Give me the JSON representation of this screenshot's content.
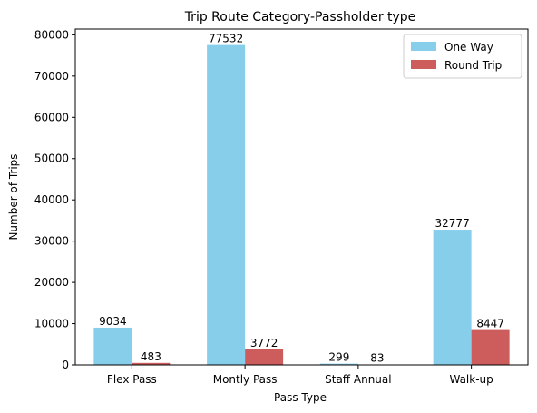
{
  "chart_data": {
    "type": "bar",
    "title": "Trip Route Category-Passholder type",
    "xlabel": "Pass Type",
    "ylabel": "Number of Trips",
    "categories": [
      "Flex Pass",
      "Montly Pass",
      "Staff Annual",
      "Walk-up"
    ],
    "series": [
      {
        "name": "One Way",
        "values": [
          9034,
          77532,
          299,
          32777
        ],
        "color": "#87ceeb"
      },
      {
        "name": "Round Trip",
        "values": [
          483,
          3772,
          83,
          8447
        ],
        "color": "#cd5c5c"
      }
    ],
    "ylim": [
      0,
      81408
    ],
    "yticks": [
      0,
      10000,
      20000,
      30000,
      40000,
      50000,
      60000,
      70000,
      80000
    ],
    "legend_position": "top-right",
    "grid": false
  }
}
